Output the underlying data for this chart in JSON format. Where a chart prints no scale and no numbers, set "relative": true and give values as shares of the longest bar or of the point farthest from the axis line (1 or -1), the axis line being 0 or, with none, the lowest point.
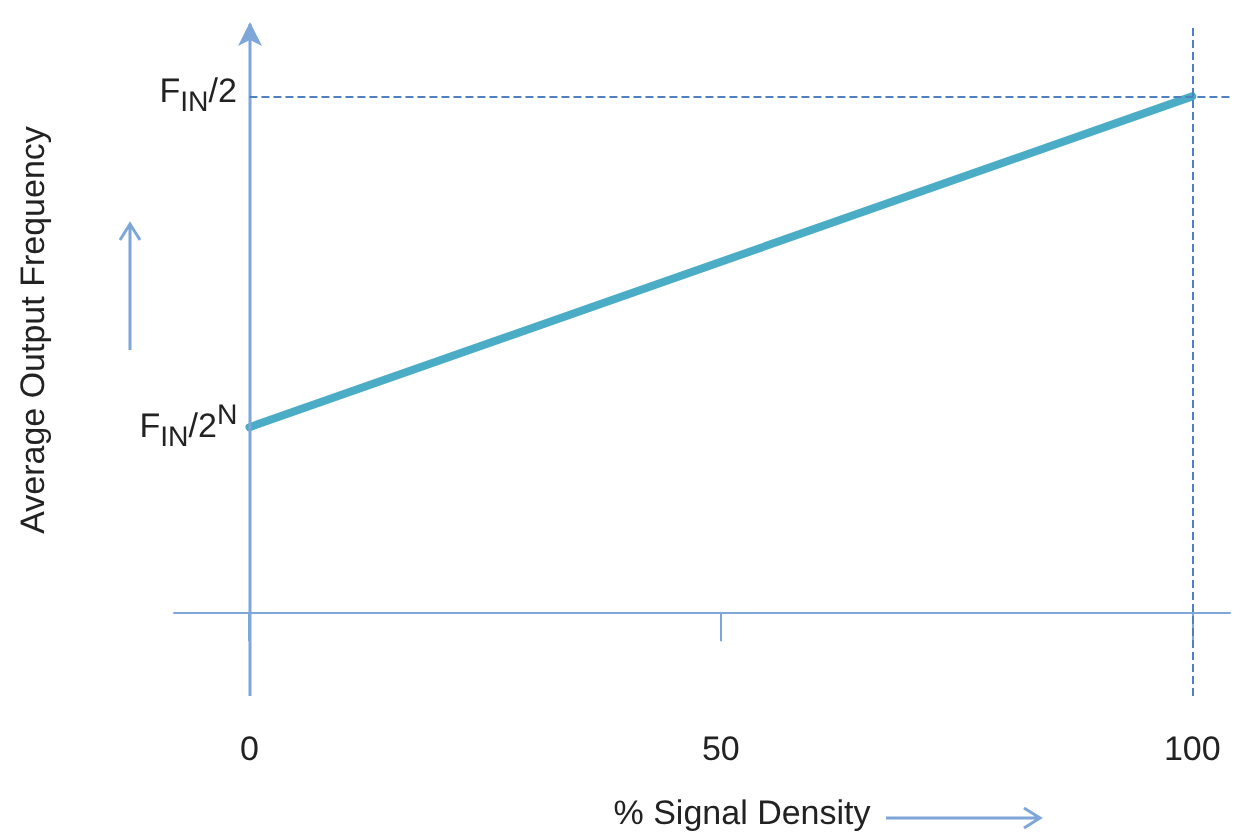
{
  "chart_data": {
    "type": "line",
    "relative": true,
    "xlabel": "% Signal Density",
    "ylabel": "Average Output Frequency",
    "x": [
      0,
      100
    ],
    "series": [
      {
        "color": "#4bacc6",
        "values": [
          0.36,
          1
        ]
      }
    ],
    "xlim": [
      -8,
      104
    ],
    "xticks": [
      0,
      50,
      100
    ],
    "marker": "none",
    "line_style": "solid",
    "grid": false,
    "ref_lines": [
      {
        "axis": "x",
        "value": 0,
        "color": "#7ea6d8",
        "line_style": "solid"
      },
      {
        "axis": "y",
        "value": 1,
        "color": "#4f81bd",
        "line_style": "dashed"
      },
      {
        "axis": "x",
        "value": 100,
        "color": "#4f81bd",
        "line_style": "dashed"
      }
    ],
    "annotations": [
      {
        "text": "F$_{IN}$/2$^{N}$",
        "x": 0,
        "y": 0.36
      },
      {
        "text": "F$_{IN}$/2",
        "x": 0,
        "y": 1
      }
    ]
  }
}
